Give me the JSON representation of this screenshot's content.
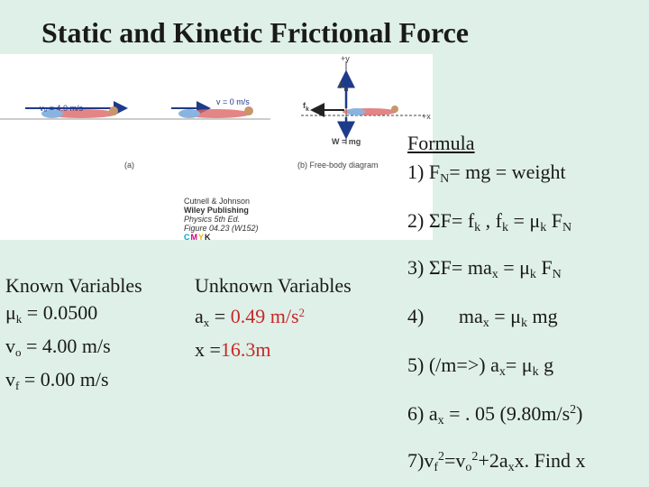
{
  "title": "Static and Kinetic Frictional Force",
  "figure": {
    "velocity_left": "v₀ = 4.0 m/s",
    "velocity_right": "v = 0 m/s",
    "caption_a": "(a)",
    "caption_b": "(b)  Free-body diagram",
    "label_plus_y": "+y",
    "label_plus_x": "+x",
    "label_fn": "F",
    "label_fn_sub": "N",
    "label_fk": "f",
    "label_fk_sub": "k",
    "label_weight": "W = mg",
    "credit_line1": "Cutnell & Johnson",
    "credit_line2": "Wiley Publishing",
    "credit_line3": "Physics 5th Ed.",
    "credit_line4": "Figure 04.23 (W152)",
    "credit_cmyk": [
      "C",
      "M",
      "Y",
      "K"
    ]
  },
  "formulas": {
    "heading": "Formula",
    "items": [
      "1) F_N= mg = weight",
      "2) ΣF= f_k , f_k = μ_k F_N",
      "3) ΣF= ma_x = μ_k F_N",
      "4)       ma_x = μ_k mg",
      "5) (/m=>) a_x= μ_k g",
      "6) a_x = . 05 (9.80m/s^2)",
      "7)v_f^2=v_o^2+2a_xx. Find x"
    ]
  },
  "known": {
    "header": "Known Variables",
    "items": [
      "μ_k = 0.0500",
      "v_o = 4.00 m/s",
      "v_f = 0.00 m/s"
    ]
  },
  "unknown": {
    "header": "Unknown Variables",
    "items": [
      "a_x = 0.49 m/s^2",
      "x  =16.3m"
    ]
  },
  "colors": {
    "background": "#dff0e8",
    "answer_red": "#c62828",
    "arrow_blue": "#1e3a8a"
  }
}
